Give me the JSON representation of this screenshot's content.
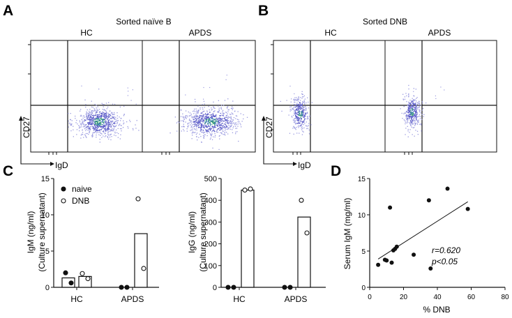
{
  "panel_letters": {
    "a": "A",
    "b": "B",
    "c": "C",
    "d": "D"
  },
  "flow": {
    "a_title": "Sorted naïve  B",
    "b_title": "Sorted DNB",
    "hc_label": "HC",
    "apds_label": "APDS",
    "y_axis": "CD27",
    "x_axis": "IgD"
  },
  "chart_data": [
    {
      "type": "bar",
      "title": "",
      "ylabel": "IgM (ng/ml)",
      "ylabel2": "(Culture supernatant)",
      "categories": [
        "HC",
        "APDS"
      ],
      "series": [
        {
          "name": "naive",
          "values": [
            1.3,
            0.0
          ],
          "points": [
            [
              2.0,
              0.6
            ],
            [
              0.0,
              0.0
            ]
          ]
        },
        {
          "name": "DNB",
          "values": [
            1.5,
            7.4
          ],
          "points": [
            [
              1.9,
              1.2
            ],
            [
              12.2,
              2.6
            ]
          ]
        }
      ],
      "ylim": [
        0,
        15
      ],
      "yticks": [
        0,
        5,
        10,
        15
      ],
      "legend": [
        {
          "label": "naive",
          "marker": "filled"
        },
        {
          "label": "DNB",
          "marker": "open"
        }
      ]
    },
    {
      "type": "bar",
      "title": "",
      "ylabel": "IgG (ng/ml)",
      "ylabel2": "(Culture supernatant)",
      "categories": [
        "HC",
        "APDS"
      ],
      "series": [
        {
          "name": "naive",
          "values": [
            0,
            0
          ],
          "points": [
            [
              0,
              0
            ],
            [
              0,
              0
            ]
          ]
        },
        {
          "name": "DNB",
          "values": [
            447,
            323
          ],
          "points": [
            [
              447,
              452
            ],
            [
              400,
              250
            ]
          ]
        }
      ],
      "ylim": [
        0,
        500
      ],
      "yticks": [
        0,
        100,
        200,
        300,
        400,
        500
      ]
    },
    {
      "type": "scatter",
      "title": "",
      "xlabel": "% DNB",
      "ylabel": "Serum IgM (mg/ml)",
      "xlim": [
        0,
        80
      ],
      "ylim": [
        0,
        15
      ],
      "xticks": [
        0,
        20,
        40,
        60,
        80
      ],
      "yticks": [
        0,
        5,
        10,
        15
      ],
      "points": [
        [
          5,
          3.1
        ],
        [
          9,
          3.8
        ],
        [
          10,
          3.7
        ],
        [
          12,
          11.0
        ],
        [
          13,
          3.4
        ],
        [
          14,
          5.1
        ],
        [
          15,
          5.3
        ],
        [
          16,
          5.6
        ],
        [
          26,
          4.5
        ],
        [
          35,
          12.0
        ],
        [
          36,
          2.6
        ],
        [
          46,
          13.6
        ],
        [
          58,
          10.8
        ]
      ],
      "fit": [
        [
          5,
          3.9
        ],
        [
          58,
          11.8
        ]
      ],
      "annotation_r": "r=0.620",
      "annotation_p": "p<0.05"
    }
  ],
  "colors": {
    "ink": "#111111",
    "dots_main": "#5a5ac8",
    "dots_dense": "#2f6fb0",
    "dots_core": "#36a06a",
    "dots_light": "#9b9be0"
  }
}
